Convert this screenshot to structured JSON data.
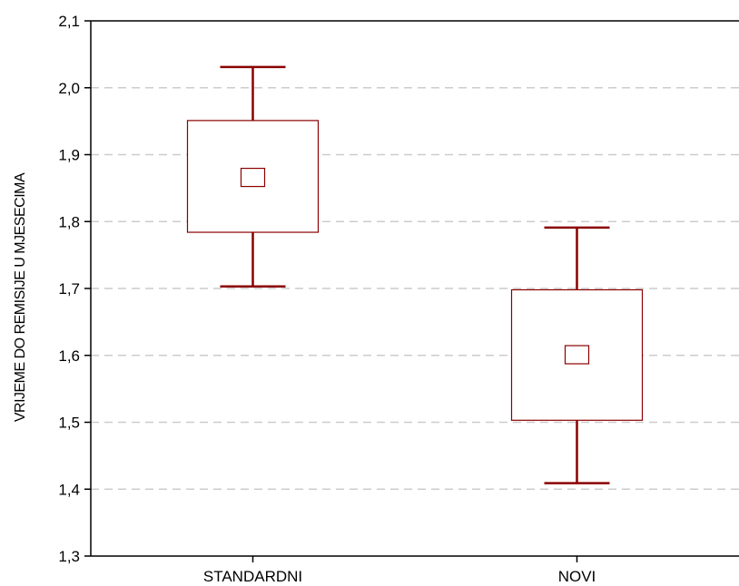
{
  "chart_data": {
    "type": "box",
    "title": "",
    "xlabel": "",
    "ylabel": "VRIJEME DO REMISIJE U MJESECIMA",
    "ylim": [
      1.3,
      2.1
    ],
    "yticks": [
      1.3,
      1.4,
      1.5,
      1.6,
      1.7,
      1.8,
      1.9,
      2.0,
      2.1
    ],
    "ytick_labels": [
      "1,3",
      "1,4",
      "1,5",
      "1,6",
      "1,7",
      "1,8",
      "1,9",
      "2,0",
      "2,1"
    ],
    "grid": "horizontal-dashed",
    "categories": [
      "STANDARDNI",
      "NOVI"
    ],
    "groups": [
      {
        "category": "STANDARDNI",
        "center": 1.866,
        "box_low": 1.784,
        "box_high": 1.951,
        "whisker_low": 1.703,
        "whisker_high": 2.031
      },
      {
        "category": "NOVI",
        "center": 1.601,
        "box_low": 1.503,
        "box_high": 1.698,
        "whisker_low": 1.409,
        "whisker_high": 1.791
      }
    ],
    "colors": {
      "whisker": "#8b0000",
      "box": "#8b0000",
      "grid": "#cccccc",
      "axis": "#000000"
    }
  }
}
